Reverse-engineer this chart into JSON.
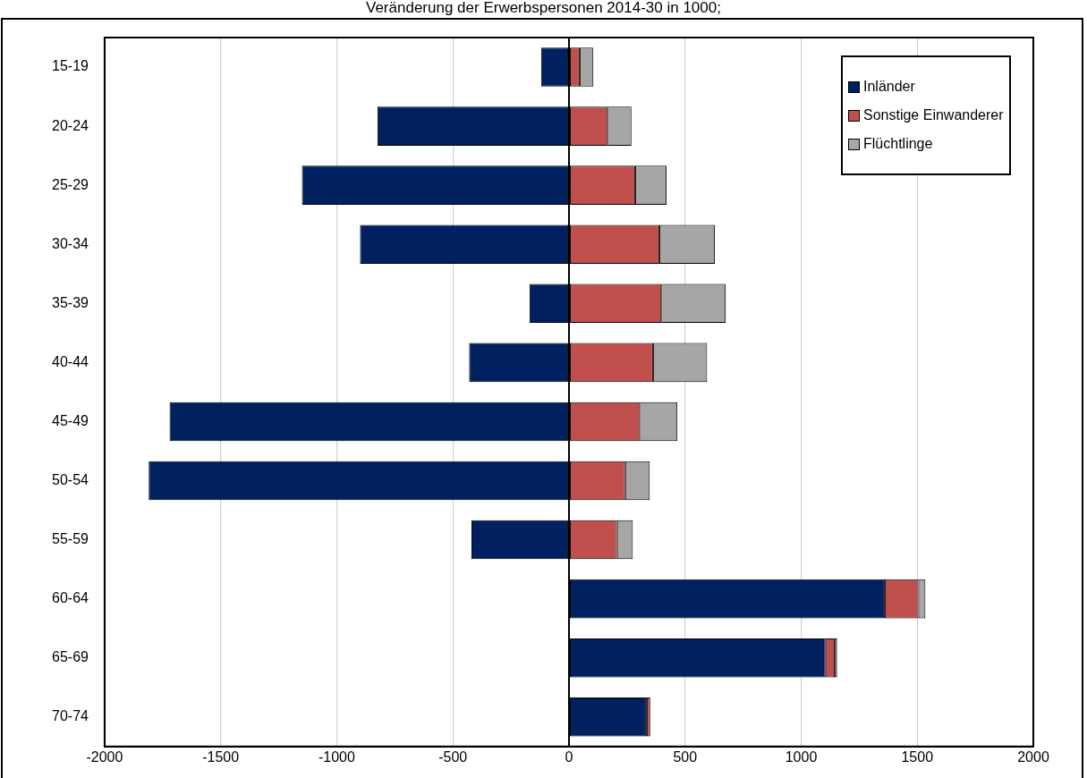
{
  "chart_data": {
    "type": "bar",
    "orientation": "horizontal",
    "stacked": true,
    "title": "Veränderung der Erwerbspersonen 2014-30 in 1000;",
    "categories": [
      "15-19",
      "20-24",
      "25-29",
      "30-34",
      "35-39",
      "40-44",
      "45-49",
      "50-54",
      "55-59",
      "60-64",
      "65-69",
      "70-74"
    ],
    "series": [
      {
        "name": "Inländer",
        "color": "#002060",
        "values": [
          -120,
          -825,
          -1150,
          -900,
          -170,
          -430,
          -1720,
          -1810,
          -420,
          1360,
          1105,
          335
        ]
      },
      {
        "name": "Sonstige Einwanderer",
        "color": "#c0504d",
        "values": [
          46,
          167,
          285,
          389,
          398,
          362,
          306,
          242,
          207,
          145,
          40,
          15
        ]
      },
      {
        "name": "Flüchtlinge",
        "color": "#a6a6a6",
        "values": [
          59,
          102,
          135,
          239,
          277,
          233,
          161,
          106,
          68,
          30,
          10,
          null
        ]
      }
    ],
    "xlim": [
      -2000,
      2000
    ],
    "xticks": [
      -2000,
      -1500,
      -1000,
      -500,
      0,
      500,
      1000,
      1500,
      2000
    ],
    "grid": "x",
    "legend": "top right"
  }
}
